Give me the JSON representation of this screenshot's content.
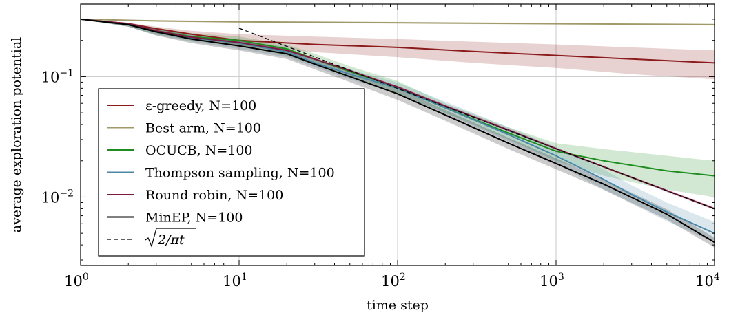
{
  "chart_data": {
    "type": "line",
    "title": "",
    "xlabel": "time step",
    "ylabel": "average exploration potential",
    "xscale": "log",
    "yscale": "log",
    "xlim": [
      1,
      10000
    ],
    "ylim": [
      0.0027,
      0.4
    ],
    "grid": true,
    "legend_position": "lower-left",
    "x_ticks": [
      {
        "value": 1,
        "base": "10",
        "exp": "0"
      },
      {
        "value": 10,
        "base": "10",
        "exp": "1"
      },
      {
        "value": 100,
        "base": "10",
        "exp": "2"
      },
      {
        "value": 1000,
        "base": "10",
        "exp": "3"
      },
      {
        "value": 10000,
        "base": "10",
        "exp": "4"
      }
    ],
    "y_ticks": [
      {
        "value": 0.1,
        "base": "10",
        "exp": "−1"
      },
      {
        "value": 0.01,
        "base": "10",
        "exp": "−2"
      }
    ],
    "series": [
      {
        "name": "ε-greedy, N=100",
        "color": "#8B1A1A",
        "style": "solid",
        "x": [
          1,
          2,
          3,
          5,
          10,
          30,
          100,
          300,
          1000,
          3000,
          10000
        ],
        "y": [
          0.3,
          0.275,
          0.25,
          0.225,
          0.2,
          0.185,
          0.175,
          0.162,
          0.15,
          0.14,
          0.13
        ],
        "band_low": [
          0.3,
          0.27,
          0.245,
          0.215,
          0.18,
          0.16,
          0.145,
          0.13,
          0.118,
          0.105,
          0.095
        ],
        "band_high": [
          0.3,
          0.28,
          0.26,
          0.24,
          0.225,
          0.215,
          0.205,
          0.195,
          0.185,
          0.175,
          0.165
        ]
      },
      {
        "name": "Best arm, N=100",
        "color": "#A09A6A",
        "style": "solid",
        "x": [
          1,
          3,
          10,
          100,
          1000,
          10000
        ],
        "y": [
          0.3,
          0.29,
          0.285,
          0.28,
          0.275,
          0.27
        ],
        "band_low": [
          0.3,
          0.285,
          0.28,
          0.275,
          0.27,
          0.265
        ],
        "band_high": [
          0.3,
          0.295,
          0.29,
          0.285,
          0.28,
          0.275
        ]
      },
      {
        "name": "OCUCB, N=100",
        "color": "#1E8C1E",
        "style": "solid",
        "x": [
          1,
          2,
          3,
          5,
          10,
          20,
          30,
          50,
          100,
          200,
          500,
          1000,
          2000,
          5000,
          10000
        ],
        "y": [
          0.3,
          0.27,
          0.24,
          0.215,
          0.2,
          0.17,
          0.14,
          0.11,
          0.082,
          0.055,
          0.034,
          0.024,
          0.02,
          0.0165,
          0.015
        ],
        "band_low": [
          0.3,
          0.26,
          0.225,
          0.2,
          0.18,
          0.15,
          0.125,
          0.098,
          0.072,
          0.05,
          0.03,
          0.02,
          0.015,
          0.0115,
          0.01
        ],
        "band_high": [
          0.3,
          0.28,
          0.255,
          0.23,
          0.215,
          0.185,
          0.155,
          0.122,
          0.092,
          0.06,
          0.038,
          0.028,
          0.025,
          0.022,
          0.02
        ]
      },
      {
        "name": "Thompson sampling, N=100",
        "color": "#4A87A6",
        "style": "solid",
        "x": [
          1,
          2,
          3,
          5,
          10,
          20,
          30,
          50,
          100,
          200,
          500,
          1000,
          2000,
          3000,
          5000,
          10000
        ],
        "y": [
          0.3,
          0.27,
          0.235,
          0.21,
          0.19,
          0.16,
          0.13,
          0.105,
          0.08,
          0.055,
          0.033,
          0.022,
          0.014,
          0.0105,
          0.0075,
          0.005
        ],
        "band_low": [
          0.3,
          0.26,
          0.22,
          0.195,
          0.17,
          0.145,
          0.12,
          0.095,
          0.072,
          0.049,
          0.029,
          0.019,
          0.0115,
          0.0088,
          0.0063,
          0.0042
        ],
        "band_high": [
          0.3,
          0.28,
          0.25,
          0.225,
          0.205,
          0.175,
          0.142,
          0.115,
          0.089,
          0.062,
          0.038,
          0.026,
          0.017,
          0.0125,
          0.009,
          0.0062
        ]
      },
      {
        "name": "Round robin, N=100",
        "color": "#7A1A40",
        "style": "solid",
        "x": [
          1,
          2,
          3,
          5,
          10,
          20,
          30,
          50,
          100,
          200,
          500,
          1000,
          2000,
          5000,
          10000
        ],
        "y": [
          0.3,
          0.275,
          0.24,
          0.212,
          0.192,
          0.165,
          0.14,
          0.112,
          0.082,
          0.057,
          0.036,
          0.0252,
          0.0178,
          0.0113,
          0.008
        ],
        "band_low": [
          0.3,
          0.27,
          0.235,
          0.207,
          0.187,
          0.16,
          0.136,
          0.109,
          0.08,
          0.0555,
          0.035,
          0.0246,
          0.0174,
          0.011,
          0.0078
        ],
        "band_high": [
          0.3,
          0.28,
          0.245,
          0.217,
          0.197,
          0.17,
          0.144,
          0.115,
          0.084,
          0.0585,
          0.037,
          0.0258,
          0.0182,
          0.0116,
          0.0082
        ]
      },
      {
        "name": "MinEP, N=100",
        "color": "#000000",
        "style": "solid",
        "x": [
          1,
          2,
          3,
          5,
          10,
          20,
          30,
          50,
          100,
          200,
          500,
          1000,
          2000,
          5000,
          10000
        ],
        "y": [
          0.3,
          0.27,
          0.235,
          0.205,
          0.18,
          0.155,
          0.127,
          0.1,
          0.072,
          0.048,
          0.028,
          0.019,
          0.0128,
          0.0072,
          0.0042
        ],
        "band_low": [
          0.3,
          0.26,
          0.22,
          0.19,
          0.165,
          0.14,
          0.115,
          0.09,
          0.064,
          0.043,
          0.025,
          0.017,
          0.0115,
          0.0065,
          0.0038
        ],
        "band_high": [
          0.3,
          0.28,
          0.25,
          0.22,
          0.197,
          0.17,
          0.14,
          0.11,
          0.08,
          0.053,
          0.031,
          0.021,
          0.014,
          0.0079,
          0.0046
        ]
      },
      {
        "name": "√(2/πt)",
        "color": "#000000",
        "style": "dashed",
        "formula": "sqrt(2/(pi*t))",
        "x": [
          10,
          30,
          100,
          300,
          1000,
          3000,
          10000
        ],
        "y": [
          0.2523,
          0.1457,
          0.0798,
          0.0461,
          0.0252,
          0.01457,
          0.00798
        ]
      }
    ],
    "legend": {
      "entries": [
        {
          "label": "ε-greedy, N=100"
        },
        {
          "label": "Best arm, N=100"
        },
        {
          "label": "OCUCB, N=100"
        },
        {
          "label": "Thompson sampling, N=100"
        },
        {
          "label": "Round robin, N=100"
        },
        {
          "label": "MinEP, N=100"
        },
        {
          "label": "√2/πt"
        }
      ]
    }
  }
}
